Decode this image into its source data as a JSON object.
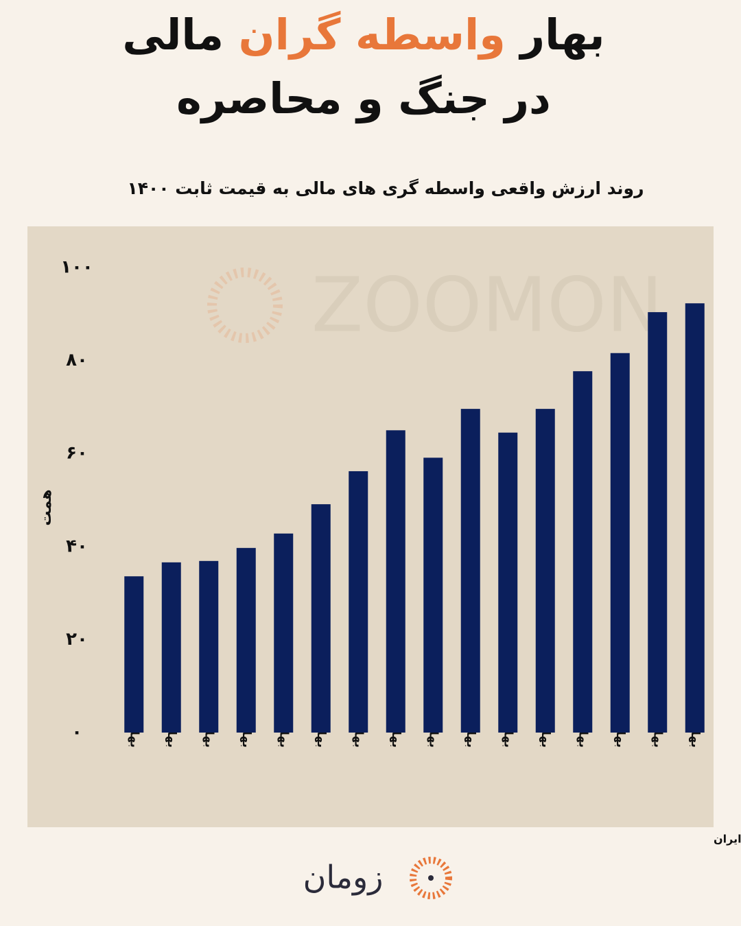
{
  "chart_data": {
    "type": "bar",
    "title": {
      "line1": [
        "بهار",
        "واسطه گران",
        "مالی"
      ],
      "line2": "در جنگ و محاصره",
      "highlight": 1,
      "highlight_color": "#e8773a"
    },
    "subtitle": "روند ارزش واقعی واسطه گری های مالی به قیمت ثابت ۱۴۰۰",
    "y_label": "همت",
    "categories": [
      "بهار ۱۳۹۰",
      "بهار ۱۳۹۱",
      "بهار ۱۳۹۲",
      "بهار ۱۳۹۳",
      "بهار ۱۳۹۴",
      "بهار ۱۳۹۵",
      "بهار ۱۳۹۶",
      "بهار ۱۳۹۷",
      "بهار ۱۳۹۸",
      "بهار ۱۳۹۹",
      "بهار ۱۴۰۰",
      "بهار ۱۴۰۱",
      "بهار ۱۴۰۲",
      "بهار ۱۴۰۳",
      "بهار ۱۴۰۴",
      "بهار ۱۴۰۵"
    ],
    "values": [
      33.6,
      36.6,
      36.9,
      39.7,
      42.8,
      49.1,
      56.2,
      65.0,
      59.1,
      69.6,
      64.5,
      69.6,
      77.7,
      81.6,
      90.4,
      92.3
    ],
    "color": "#0b1f5c",
    "ylim": [
      0,
      100
    ],
    "yticks": [
      {
        "value": 0,
        "label": "۰"
      },
      {
        "value": 20,
        "label": "۲۰"
      },
      {
        "value": 40,
        "label": "۴۰"
      },
      {
        "value": 60,
        "label": "۶۰"
      },
      {
        "value": 80,
        "label": "۸۰"
      },
      {
        "value": 100,
        "label": "۱۰۰"
      }
    ],
    "grid": false,
    "watermark": "ZOOMON",
    "source": "منبع داده: مرکز آمار ایران",
    "brand": "زومان"
  }
}
